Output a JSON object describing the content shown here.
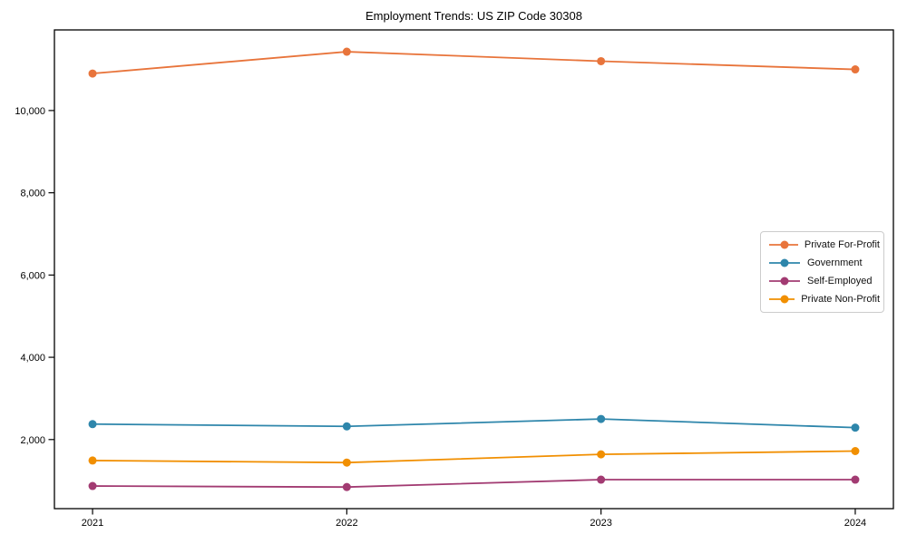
{
  "title": "Employment Trends: US ZIP Code 30308",
  "colors": {
    "axis": "#000000",
    "tick_label": "#000000",
    "legend_border": "#cccccc",
    "background": "#ffffff"
  },
  "chart_data": {
    "type": "line",
    "title": "Employment Trends: US ZIP Code 30308",
    "x": [
      2021,
      2022,
      2023,
      2024
    ],
    "x_tick_labels": [
      "2021",
      "2022",
      "2023",
      "2024"
    ],
    "series": [
      {
        "name": "Private For-Profit",
        "color": "#e8743b",
        "values": [
          10900,
          11430,
          11200,
          11000
        ]
      },
      {
        "name": "Government",
        "color": "#2e86ab",
        "values": [
          2375,
          2320,
          2500,
          2290
        ]
      },
      {
        "name": "Self-Employed",
        "color": "#a23b72",
        "values": [
          870,
          845,
          1025,
          1025
        ]
      },
      {
        "name": "Private Non-Profit",
        "color": "#f18f01",
        "values": [
          1490,
          1440,
          1640,
          1720
        ]
      }
    ],
    "yticks": [
      {
        "value": 2000,
        "label": "2,000"
      },
      {
        "value": 4000,
        "label": "4,000"
      },
      {
        "value": 6000,
        "label": "6,000"
      },
      {
        "value": 8000,
        "label": "8,000"
      },
      {
        "value": 10000,
        "label": "10,000"
      }
    ],
    "ylim": [
      320,
      11960
    ],
    "xlim": [
      2020.85,
      2024.15
    ],
    "grid": false,
    "legend_position": "center-right",
    "marker": "circle"
  }
}
